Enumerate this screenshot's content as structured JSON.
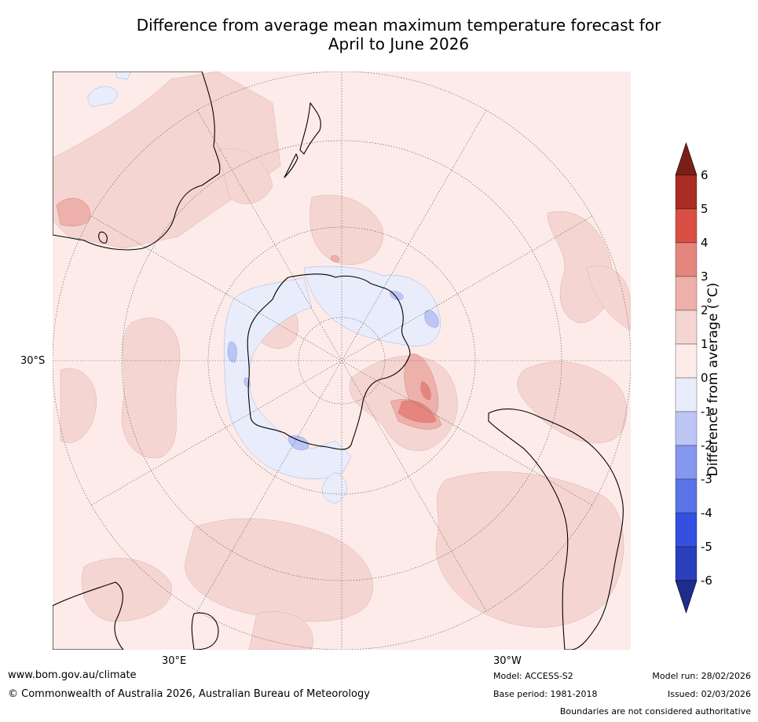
{
  "title_line1": "Difference from average mean maximum temperature forecast for",
  "title_line2": "April to June 2026",
  "map": {
    "projection": "south-polar",
    "lat_label": "30°S",
    "lon_labels": [
      "30°E",
      "30°W"
    ]
  },
  "colorbar": {
    "title": "Difference from average (°C)",
    "ticks": [
      "-6",
      "-5",
      "-4",
      "-3",
      "-2",
      "-1",
      "0",
      "1",
      "2",
      "3",
      "4",
      "5",
      "6"
    ],
    "colors": [
      "#1f2d8a",
      "#2a3fbb",
      "#3350e0",
      "#5a74e8",
      "#8597ee",
      "#bcc5f4",
      "#e8ecfb",
      "#fcebe9",
      "#f5d5d1",
      "#eeb0aa",
      "#e5867e",
      "#d94f44",
      "#a92d24",
      "#7a1f18"
    ]
  },
  "footer": {
    "url": "www.bom.gov.au/climate",
    "copyright": "© Commonwealth of Australia 2026, Australian Bureau of Meteorology",
    "model": "Model: ACCESS-S2",
    "base_period": "Base period: 1981-2018",
    "model_run": "Model run: 28/02/2026",
    "issued": "Issued: 02/03/2026",
    "disclaimer": "Boundaries are not considered authoritative"
  }
}
